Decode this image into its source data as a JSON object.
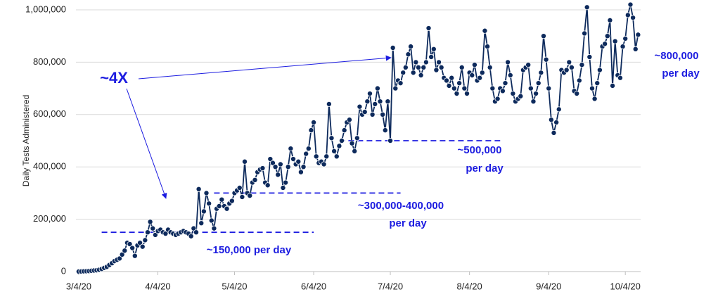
{
  "chart_data": {
    "type": "line",
    "y_label": "Daily Tests Administered",
    "ylim": [
      0,
      1000000
    ],
    "yticks": [
      0,
      {
        "value": 200000,
        "label": "200,000"
      },
      {
        "value": 400000,
        "label": "400,000"
      },
      {
        "value": 600000,
        "label": "600,000"
      },
      {
        "value": 800000,
        "label": "800,000"
      },
      {
        "value": 1000000,
        "label": "1,000,000"
      }
    ],
    "xlim": [
      "3/1/20",
      "10/10/20"
    ],
    "xticks": [
      "3/4/20",
      "4/4/20",
      "5/4/20",
      "6/4/20",
      "7/4/20",
      "8/4/20",
      "9/4/20",
      "10/4/20"
    ],
    "grid": true,
    "x": [
      "3/4/20",
      "3/5/20",
      "3/6/20",
      "3/7/20",
      "3/8/20",
      "3/9/20",
      "3/10/20",
      "3/11/20",
      "3/12/20",
      "3/13/20",
      "3/14/20",
      "3/15/20",
      "3/16/20",
      "3/17/20",
      "3/18/20",
      "3/19/20",
      "3/20/20",
      "3/21/20",
      "3/22/20",
      "3/23/20",
      "3/24/20",
      "3/25/20",
      "3/26/20",
      "3/27/20",
      "3/28/20",
      "3/29/20",
      "3/30/20",
      "3/31/20",
      "4/1/20",
      "4/2/20",
      "4/3/20",
      "4/4/20",
      "4/5/20",
      "4/6/20",
      "4/7/20",
      "4/8/20",
      "4/9/20",
      "4/10/20",
      "4/11/20",
      "4/12/20",
      "4/13/20",
      "4/14/20",
      "4/15/20",
      "4/16/20",
      "4/17/20",
      "4/18/20",
      "4/19/20",
      "4/20/20",
      "4/21/20",
      "4/22/20",
      "4/23/20",
      "4/24/20",
      "4/25/20",
      "4/26/20",
      "4/27/20",
      "4/28/20",
      "4/29/20",
      "4/30/20",
      "5/1/20",
      "5/2/20",
      "5/3/20",
      "5/4/20",
      "5/5/20",
      "5/6/20",
      "5/7/20",
      "5/8/20",
      "5/9/20",
      "5/10/20",
      "5/11/20",
      "5/12/20",
      "5/13/20",
      "5/14/20",
      "5/15/20",
      "5/16/20",
      "5/17/20",
      "5/18/20",
      "5/19/20",
      "5/20/20",
      "5/21/20",
      "5/22/20",
      "5/23/20",
      "5/24/20",
      "5/25/20",
      "5/26/20",
      "5/27/20",
      "5/28/20",
      "5/29/20",
      "5/30/20",
      "5/31/20",
      "6/1/20",
      "6/2/20",
      "6/3/20",
      "6/4/20",
      "6/5/20",
      "6/6/20",
      "6/7/20",
      "6/8/20",
      "6/9/20",
      "6/10/20",
      "6/11/20",
      "6/12/20",
      "6/13/20",
      "6/14/20",
      "6/15/20",
      "6/16/20",
      "6/17/20",
      "6/18/20",
      "6/19/20",
      "6/20/20",
      "6/21/20",
      "6/22/20",
      "6/23/20",
      "6/24/20",
      "6/25/20",
      "6/26/20",
      "6/27/20",
      "6/28/20",
      "6/29/20",
      "6/30/20",
      "7/1/20",
      "7/2/20",
      "7/3/20",
      "7/4/20",
      "7/5/20",
      "7/6/20",
      "7/7/20",
      "7/8/20",
      "7/9/20",
      "7/10/20",
      "7/11/20",
      "7/12/20",
      "7/13/20",
      "7/14/20",
      "7/15/20",
      "7/16/20",
      "7/17/20",
      "7/18/20",
      "7/19/20",
      "7/20/20",
      "7/21/20",
      "7/22/20",
      "7/23/20",
      "7/24/20",
      "7/25/20",
      "7/26/20",
      "7/27/20",
      "7/28/20",
      "7/29/20",
      "7/30/20",
      "7/31/20",
      "8/1/20",
      "8/2/20",
      "8/3/20",
      "8/4/20",
      "8/5/20",
      "8/6/20",
      "8/7/20",
      "8/8/20",
      "8/9/20",
      "8/10/20",
      "8/11/20",
      "8/12/20",
      "8/13/20",
      "8/14/20",
      "8/15/20",
      "8/16/20",
      "8/17/20",
      "8/18/20",
      "8/19/20",
      "8/20/20",
      "8/21/20",
      "8/22/20",
      "8/23/20",
      "8/24/20",
      "8/25/20",
      "8/26/20",
      "8/27/20",
      "8/28/20",
      "8/29/20",
      "8/30/20",
      "8/31/20",
      "9/1/20",
      "9/2/20",
      "9/3/20",
      "9/4/20",
      "9/5/20",
      "9/6/20",
      "9/7/20",
      "9/8/20",
      "9/9/20",
      "9/10/20",
      "9/11/20",
      "9/12/20",
      "9/13/20",
      "9/14/20",
      "9/15/20",
      "9/16/20",
      "9/17/20",
      "9/18/20",
      "9/19/20",
      "9/20/20",
      "9/21/20",
      "9/22/20",
      "9/23/20",
      "9/24/20",
      "9/25/20",
      "9/26/20",
      "9/27/20",
      "9/28/20",
      "9/29/20",
      "9/30/20",
      "10/1/20",
      "10/2/20",
      "10/3/20",
      "10/4/20",
      "10/5/20",
      "10/6/20",
      "10/7/20",
      "10/8/20",
      "10/9/20"
    ],
    "series": [
      {
        "color": "#0d2a5c",
        "values": [
          0,
          500,
          1000,
          1500,
          2000,
          3000,
          4000,
          5000,
          7000,
          10000,
          14000,
          18000,
          25000,
          32000,
          40000,
          45000,
          50000,
          65000,
          80000,
          110000,
          105000,
          90000,
          60000,
          100000,
          110000,
          95000,
          120000,
          150000,
          190000,
          165000,
          140000,
          155000,
          160000,
          150000,
          145000,
          160000,
          150000,
          145000,
          140000,
          145000,
          150000,
          155000,
          150000,
          145000,
          135000,
          165000,
          150000,
          315000,
          185000,
          230000,
          300000,
          260000,
          195000,
          165000,
          240000,
          250000,
          275000,
          250000,
          240000,
          260000,
          270000,
          300000,
          310000,
          320000,
          285000,
          420000,
          300000,
          290000,
          340000,
          350000,
          380000,
          390000,
          395000,
          340000,
          330000,
          430000,
          415000,
          400000,
          370000,
          410000,
          320000,
          340000,
          400000,
          470000,
          430000,
          410000,
          420000,
          380000,
          400000,
          450000,
          470000,
          540000,
          570000,
          440000,
          415000,
          420000,
          410000,
          440000,
          640000,
          510000,
          460000,
          440000,
          480000,
          500000,
          540000,
          570000,
          580000,
          490000,
          460000,
          510000,
          630000,
          600000,
          610000,
          650000,
          680000,
          600000,
          640000,
          700000,
          650000,
          600000,
          540000,
          650000,
          500000,
          855000,
          700000,
          730000,
          720000,
          760000,
          780000,
          830000,
          860000,
          760000,
          800000,
          780000,
          750000,
          780000,
          800000,
          930000,
          820000,
          850000,
          770000,
          800000,
          780000,
          740000,
          730000,
          710000,
          740000,
          700000,
          680000,
          720000,
          780000,
          700000,
          680000,
          760000,
          750000,
          790000,
          730000,
          740000,
          760000,
          920000,
          860000,
          780000,
          700000,
          650000,
          660000,
          700000,
          690000,
          720000,
          800000,
          750000,
          680000,
          650000,
          660000,
          670000,
          770000,
          780000,
          790000,
          700000,
          650000,
          680000,
          720000,
          760000,
          900000,
          810000,
          700000,
          580000,
          530000,
          570000,
          620000,
          770000,
          760000,
          770000,
          800000,
          780000,
          690000,
          680000,
          730000,
          790000,
          910000,
          1010000,
          820000,
          700000,
          660000,
          720000,
          770000,
          860000,
          870000,
          900000,
          960000,
          710000,
          880000,
          750000,
          740000,
          860000,
          890000,
          980000,
          1020000,
          970000,
          850000,
          905000
        ]
      }
    ],
    "reference_lines": [
      {
        "value": 150000,
        "start": "3/13/20",
        "end": "6/4/20"
      },
      {
        "value": 300000,
        "start": "4/26/20",
        "end": "7/8/20"
      },
      {
        "value": 500000,
        "start": "6/14/20",
        "end": "8/16/20"
      }
    ],
    "annotations": [
      {
        "text": [
          "~4X"
        ]
      },
      {
        "text": [
          "~150,000  per day"
        ]
      },
      {
        "text": [
          "~300,000-400,000",
          "per day"
        ]
      },
      {
        "text": [
          "~500,000",
          "per day"
        ]
      },
      {
        "text": [
          "~800,000",
          "per day"
        ]
      }
    ]
  }
}
